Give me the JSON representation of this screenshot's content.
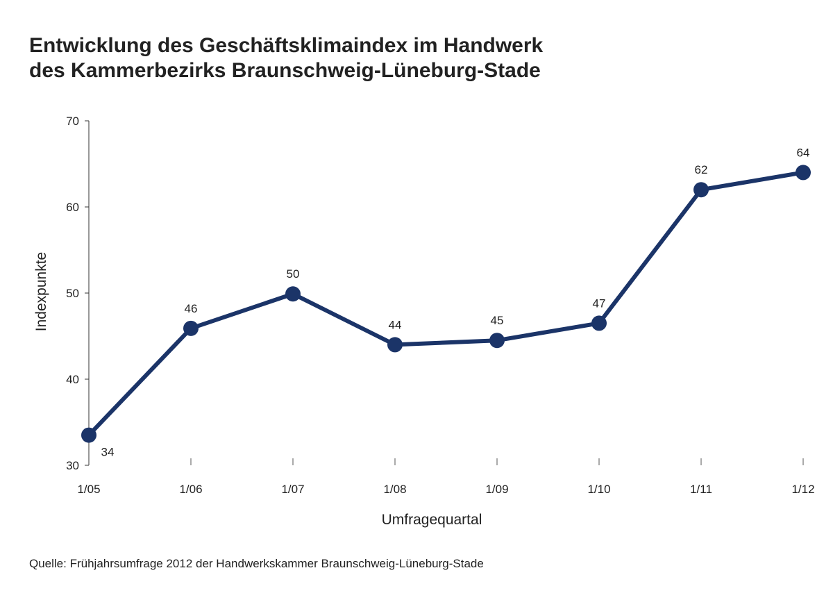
{
  "chart_data": {
    "type": "line",
    "title_line1": "Entwicklung des Geschäftsklimaindex im Handwerk",
    "title_line2": "des Kammerbezirks Braunschweig-Lüneburg-Stade",
    "xlabel": "Umfragequartal",
    "ylabel": "Indexpunkte",
    "categories": [
      "1/05",
      "1/06",
      "1/07",
      "1/08",
      "1/09",
      "1/10",
      "1/11",
      "1/12"
    ],
    "values": [
      33.5,
      45.9,
      49.9,
      44.0,
      44.5,
      46.5,
      62.0,
      64.0
    ],
    "data_labels": [
      "34",
      "46",
      "50",
      "44",
      "45",
      "47",
      "62",
      "64"
    ],
    "ylim": [
      30,
      70
    ],
    "yticks": [
      30,
      40,
      50,
      60,
      70
    ],
    "grid": false,
    "line_color": "#1b3468",
    "source": "Quelle: Frühjahrsumfrage 2012 der Handwerkskammer Braunschweig-Lüneburg-Stade"
  }
}
